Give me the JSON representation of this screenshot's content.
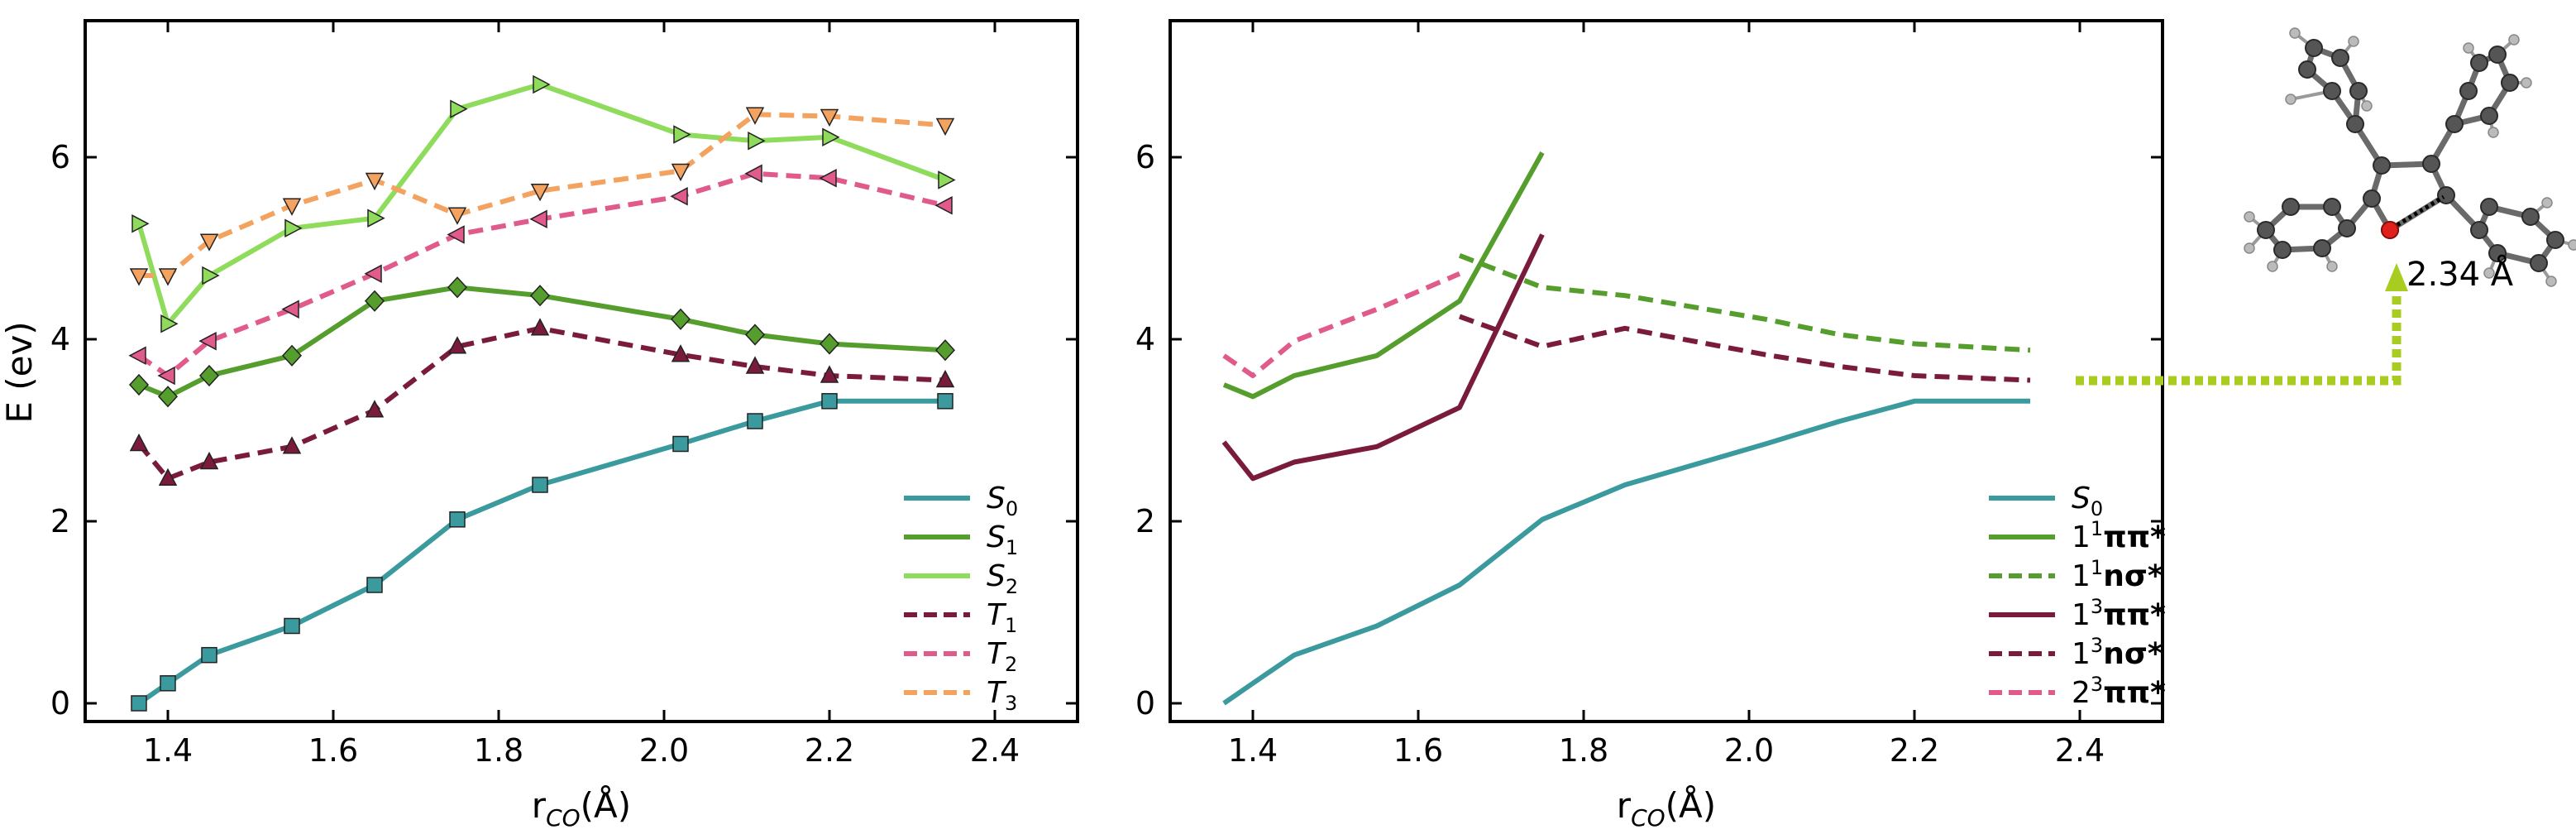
{
  "chart_data": [
    {
      "type": "line",
      "panel": "left",
      "xlabel": "r_CO(Å)",
      "ylabel": "E (ev)",
      "xlim": [
        1.3,
        2.5
      ],
      "ylim": [
        -0.2,
        7.5
      ],
      "xticks": [
        1.4,
        1.6,
        1.8,
        2.0,
        2.2,
        2.4
      ],
      "yticks": [
        0,
        2,
        4,
        6
      ],
      "legend_position": "bottom-right",
      "series": [
        {
          "name": "S_0",
          "color": "#3a9a9e",
          "dash": "solid",
          "marker": "square",
          "x": [
            1.365,
            1.4,
            1.45,
            1.55,
            1.65,
            1.75,
            1.85,
            2.02,
            2.11,
            2.2,
            2.34
          ],
          "y": [
            0.0,
            0.22,
            0.53,
            0.85,
            1.3,
            2.02,
            2.4,
            2.85,
            3.1,
            3.32,
            3.32
          ]
        },
        {
          "name": "S_1",
          "color": "#559e2d",
          "dash": "solid",
          "marker": "diamond",
          "x": [
            1.365,
            1.4,
            1.45,
            1.55,
            1.65,
            1.75,
            1.85,
            2.02,
            2.11,
            2.2,
            2.34
          ],
          "y": [
            3.5,
            3.37,
            3.6,
            3.82,
            4.42,
            4.57,
            4.48,
            4.22,
            4.05,
            3.95,
            3.88
          ]
        },
        {
          "name": "S_2",
          "color": "#8fdb5c",
          "dash": "solid",
          "marker": "tri-right",
          "x": [
            1.365,
            1.4,
            1.45,
            1.55,
            1.65,
            1.75,
            1.85,
            2.02,
            2.11,
            2.2,
            2.34
          ],
          "y": [
            5.27,
            4.17,
            4.7,
            5.22,
            5.33,
            6.53,
            6.8,
            6.25,
            6.18,
            6.22,
            5.75
          ]
        },
        {
          "name": "T_1",
          "color": "#7a1b3e",
          "dash": "dashed",
          "marker": "tri-up",
          "x": [
            1.365,
            1.4,
            1.45,
            1.55,
            1.65,
            1.75,
            1.85,
            2.02,
            2.11,
            2.2,
            2.34
          ],
          "y": [
            2.85,
            2.47,
            2.65,
            2.82,
            3.22,
            3.92,
            4.12,
            3.83,
            3.7,
            3.6,
            3.55
          ]
        },
        {
          "name": "T_2",
          "color": "#e05a8c",
          "dash": "dashed",
          "marker": "tri-left",
          "x": [
            1.365,
            1.4,
            1.45,
            1.55,
            1.65,
            1.75,
            1.85,
            2.02,
            2.11,
            2.2,
            2.34
          ],
          "y": [
            3.82,
            3.6,
            3.98,
            4.33,
            4.72,
            5.15,
            5.32,
            5.57,
            5.82,
            5.77,
            5.47
          ]
        },
        {
          "name": "T_3",
          "color": "#f3a35f",
          "dash": "dashed",
          "marker": "tri-down",
          "x": [
            1.365,
            1.4,
            1.45,
            1.55,
            1.65,
            1.75,
            1.85,
            2.02,
            2.11,
            2.2,
            2.34
          ],
          "y": [
            4.7,
            4.7,
            5.08,
            5.47,
            5.75,
            5.37,
            5.63,
            5.85,
            6.47,
            6.45,
            6.35
          ]
        }
      ],
      "legend": [
        {
          "label": "S",
          "sub": "0",
          "sup": "",
          "suffix": ""
        },
        {
          "label": "S",
          "sub": "1",
          "sup": "",
          "suffix": ""
        },
        {
          "label": "S",
          "sub": "2",
          "sup": "",
          "suffix": ""
        },
        {
          "label": "T",
          "sub": "1",
          "sup": "",
          "suffix": ""
        },
        {
          "label": "T",
          "sub": "2",
          "sup": "",
          "suffix": ""
        },
        {
          "label": "T",
          "sub": "3",
          "sup": "",
          "suffix": ""
        }
      ]
    },
    {
      "type": "line",
      "panel": "right",
      "xlabel": "r_CO(Å)",
      "ylabel": "",
      "xlim": [
        1.3,
        2.5
      ],
      "ylim": [
        -0.2,
        7.5
      ],
      "xticks": [
        1.4,
        1.6,
        1.8,
        2.0,
        2.2,
        2.4
      ],
      "yticks": [
        0,
        2,
        4,
        6
      ],
      "legend_position": "bottom-right",
      "series": [
        {
          "name": "S0",
          "color": "#3a9a9e",
          "dash": "solid",
          "x": [
            1.365,
            1.4,
            1.45,
            1.55,
            1.65,
            1.75,
            1.85,
            2.02,
            2.11,
            2.2,
            2.34
          ],
          "y": [
            0.0,
            0.22,
            0.53,
            0.85,
            1.3,
            2.02,
            2.4,
            2.85,
            3.1,
            3.32,
            3.32
          ]
        },
        {
          "name": "1 1ππ*",
          "color": "#559e2d",
          "dash": "solid",
          "x": [
            1.365,
            1.4,
            1.45,
            1.55,
            1.65,
            1.75
          ],
          "y": [
            3.5,
            3.37,
            3.6,
            3.82,
            4.42,
            6.05
          ]
        },
        {
          "name": "1 1nσ*",
          "color": "#559e2d",
          "dash": "dashed",
          "x": [
            1.65,
            1.75,
            1.85,
            2.02,
            2.11,
            2.2,
            2.34
          ],
          "y": [
            4.92,
            4.57,
            4.48,
            4.22,
            4.05,
            3.95,
            3.88
          ]
        },
        {
          "name": "1 3ππ*",
          "color": "#7a1b3e",
          "dash": "solid",
          "x": [
            1.365,
            1.4,
            1.45,
            1.55,
            1.65,
            1.75
          ],
          "y": [
            2.87,
            2.47,
            2.65,
            2.82,
            3.25,
            5.15
          ]
        },
        {
          "name": "1 3nσ*",
          "color": "#7a1b3e",
          "dash": "dashed",
          "x": [
            1.65,
            1.75,
            1.85,
            2.02,
            2.11,
            2.2,
            2.34
          ],
          "y": [
            4.25,
            3.92,
            4.12,
            3.83,
            3.7,
            3.6,
            3.55
          ]
        },
        {
          "name": "2 3ππ*",
          "color": "#e05a8c",
          "dash": "dashed",
          "x": [
            1.365,
            1.4,
            1.45,
            1.55,
            1.65
          ],
          "y": [
            3.82,
            3.6,
            3.98,
            4.33,
            4.72
          ]
        }
      ],
      "legend": [
        {
          "label": "S",
          "sub": "0",
          "sup": "",
          "suffix": ""
        },
        {
          "label": "1",
          "sub": "",
          "sup": "1",
          "suffix": "ππ*"
        },
        {
          "label": "1",
          "sub": "",
          "sup": "1",
          "suffix": "nσ*"
        },
        {
          "label": "1",
          "sub": "",
          "sup": "3",
          "suffix": "ππ*"
        },
        {
          "label": "1",
          "sub": "",
          "sup": "3",
          "suffix": "nσ*"
        },
        {
          "label": "2",
          "sub": "",
          "sup": "3",
          "suffix": "ππ*"
        }
      ]
    }
  ],
  "axis_labels": {
    "x_main": "r",
    "x_sub": "CO",
    "x_unit": "(Å)",
    "y_main": "E (ev)"
  },
  "molecule": {
    "distance_label": "2.34 Å",
    "arrow_color": "#a8cc1f",
    "oxygen_color": "#e0201b",
    "carbon_color": "#555555",
    "hydrogen_color": "#bbbbbb"
  }
}
